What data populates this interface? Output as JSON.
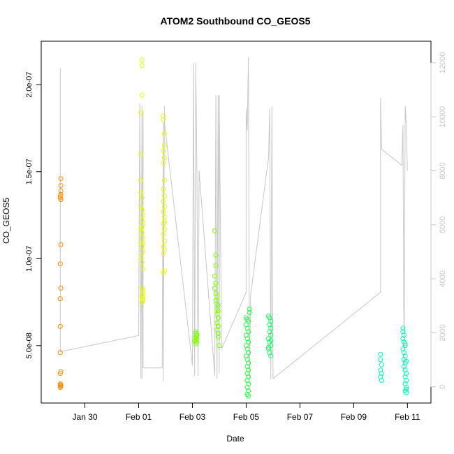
{
  "chart_data": {
    "type": "scatter",
    "title": "ATOM2 Southbound CO_GEOS5",
    "xlabel": "Date",
    "ylabel": "CO_GEOS5",
    "x_ticks": [
      "Jan 30",
      "Feb 01",
      "Feb 03",
      "Feb 05",
      "Feb 07",
      "Feb 09",
      "Feb 11"
    ],
    "y_ticks": [
      "5.0e-08",
      "1.0e-07",
      "1.5e-07",
      "2.0e-07"
    ],
    "y_tick_values": [
      5e-08,
      1e-07,
      1.5e-07,
      2e-07
    ],
    "y2_ticks": [
      "0",
      "2000",
      "4000",
      "6000",
      "8000",
      "10000",
      "12000"
    ],
    "y2_tick_values": [
      0,
      2000,
      4000,
      6000,
      8000,
      10000,
      12000
    ],
    "xlim": [
      "2017-01-28 09:00",
      "2017-02-11 21:00"
    ],
    "ylim": [
      1.7e-08,
      2.25e-07
    ],
    "y2lim": [
      -600,
      12800
    ],
    "grid": false,
    "colors": {
      "altitude_line": "#c8c8c8",
      "axis": "#000000",
      "y2_axis": "#c8c8c8",
      "flight_colors": [
        "#ff8c00",
        "#ffff00",
        "#e6ff00",
        "#80ff00",
        "#33ff33",
        "#00ff55",
        "#11ff77",
        "#00ffcc"
      ]
    },
    "series": [
      {
        "marker": "circle-open",
        "color": "#ff8c00",
        "points": [
          [
            "2017-01-29 02:00",
            1.36e-07
          ],
          [
            "2017-01-29 02:00",
            1.35e-07
          ],
          [
            "2017-01-29 02:30",
            1.37e-07
          ],
          [
            "2017-01-29 02:30",
            1.42e-07
          ],
          [
            "2017-01-29 02:30",
            1.46e-07
          ],
          [
            "2017-01-29 02:30",
            1.39e-07
          ],
          [
            "2017-01-29 02:30",
            1.34e-07
          ],
          [
            "2017-01-29 02:30",
            1.08e-07
          ],
          [
            "2017-01-29 02:00",
            9.7e-08
          ],
          [
            "2017-01-29 02:30",
            8.3e-08
          ],
          [
            "2017-01-29 02:00",
            7.7e-08
          ],
          [
            "2017-01-29 02:00",
            6.1e-08
          ],
          [
            "2017-01-29 02:00",
            4.6e-08
          ],
          [
            "2017-01-29 02:30",
            3.5e-08
          ],
          [
            "2017-01-29 02:00",
            3.4e-08
          ],
          [
            "2017-01-29 02:00",
            2.8e-08
          ],
          [
            "2017-01-29 02:30",
            2.75e-08
          ],
          [
            "2017-01-29 02:00",
            2.7e-08
          ],
          [
            "2017-01-29 02:30",
            2.65e-08
          ],
          [
            "2017-01-29 02:00",
            2.6e-08
          ]
        ]
      },
      {
        "marker": "circle-open",
        "color": "#e6ff00",
        "points": [
          [
            "2017-02-01 03:00",
            2.14e-07
          ],
          [
            "2017-02-01 03:00",
            2.11e-07
          ],
          [
            "2017-02-01 03:00",
            1.94e-07
          ],
          [
            "2017-02-01 02:00",
            1.84e-07
          ],
          [
            "2017-02-01 02:00",
            1.6e-07
          ],
          [
            "2017-02-01 02:00",
            1.45e-07
          ],
          [
            "2017-02-01 02:00",
            1.38e-07
          ],
          [
            "2017-02-01 03:00",
            1.35e-07
          ],
          [
            "2017-02-01 02:00",
            1.3e-07
          ],
          [
            "2017-02-01 04:00",
            1.25e-07
          ],
          [
            "2017-02-01 03:00",
            1.22e-07
          ],
          [
            "2017-02-01 04:00",
            1.2e-07
          ],
          [
            "2017-02-01 02:00",
            1.17e-07
          ],
          [
            "2017-02-01 03:00",
            1.15e-07
          ],
          [
            "2017-02-01 04:00",
            1.12e-07
          ],
          [
            "2017-02-01 02:00",
            1.1e-07
          ],
          [
            "2017-02-01 03:00",
            1.07e-07
          ],
          [
            "2017-02-01 04:00",
            1.04e-07
          ],
          [
            "2017-02-01 02:00",
            1.01e-07
          ],
          [
            "2017-02-01 03:00",
            9.8e-08
          ],
          [
            "2017-02-01 04:00",
            9.4e-08
          ],
          [
            "2017-02-01 03:00",
            8.3e-08
          ],
          [
            "2017-02-01 04:00",
            8e-08
          ],
          [
            "2017-02-01 03:00",
            7.8e-08
          ],
          [
            "2017-02-01 04:00",
            7.6e-08
          ],
          [
            "2017-02-01 03:00",
            7.5e-08
          ],
          [
            "2017-02-01 04:00",
            7.7e-08
          ],
          [
            "2017-02-01 03:00",
            7.9e-08
          ],
          [
            "2017-02-01 04:00",
            8.2e-08
          ],
          [
            "2017-02-01 03:00",
            1.18e-07
          ],
          [
            "2017-02-01 04:00",
            1.09e-07
          ],
          [
            "2017-02-01 03:00",
            1.28e-07
          ],
          [
            "2017-02-01 22:00",
            1.82e-07
          ],
          [
            "2017-02-01 22:00",
            1.8e-07
          ],
          [
            "2017-02-01 23:00",
            1.72e-07
          ],
          [
            "2017-02-01 23:00",
            1.65e-07
          ],
          [
            "2017-02-01 22:00",
            1.62e-07
          ],
          [
            "2017-02-01 23:00",
            1.58e-07
          ],
          [
            "2017-02-01 22:00",
            1.55e-07
          ],
          [
            "2017-02-01 23:00",
            1.45e-07
          ],
          [
            "2017-02-01 22:00",
            1.4e-07
          ],
          [
            "2017-02-01 23:00",
            1.36e-07
          ],
          [
            "2017-02-01 22:00",
            1.33e-07
          ],
          [
            "2017-02-01 23:00",
            1.3e-07
          ],
          [
            "2017-02-01 22:00",
            1.27e-07
          ],
          [
            "2017-02-01 23:00",
            1.24e-07
          ],
          [
            "2017-02-01 22:00",
            1.2e-07
          ],
          [
            "2017-02-01 23:00",
            1.17e-07
          ],
          [
            "2017-02-01 22:00",
            1.14e-07
          ],
          [
            "2017-02-01 23:00",
            1.1e-07
          ],
          [
            "2017-02-01 22:00",
            1.07e-07
          ],
          [
            "2017-02-01 23:00",
            1.05e-07
          ],
          [
            "2017-02-01 22:00",
            1.03e-07
          ],
          [
            "2017-02-01 23:00",
            9.3e-08
          ],
          [
            "2017-02-01 22:00",
            9.2e-08
          ],
          [
            "2017-02-01 23:00",
            1.21e-07
          ]
        ]
      },
      {
        "marker": "circle-open",
        "color": "#80ff00",
        "points": [
          [
            "2017-02-03 03:00",
            5.8e-08
          ],
          [
            "2017-02-03 03:00",
            5.7e-08
          ],
          [
            "2017-02-03 04:00",
            5.6e-08
          ],
          [
            "2017-02-03 03:00",
            5.5e-08
          ],
          [
            "2017-02-03 04:00",
            5.4e-08
          ],
          [
            "2017-02-03 03:00",
            5.3e-08
          ],
          [
            "2017-02-03 04:00",
            5.2e-08
          ],
          [
            "2017-02-03 03:00",
            5.1e-08
          ],
          [
            "2017-02-03 02:00",
            5.45e-08
          ],
          [
            "2017-02-03 02:00",
            5.25e-08
          ],
          [
            "2017-02-03 04:00",
            5.65e-08
          ],
          [
            "2017-02-03 20:00",
            1.16e-07
          ],
          [
            "2017-02-03 21:00",
            1.02e-07
          ],
          [
            "2017-02-03 21:00",
            9.6e-08
          ],
          [
            "2017-02-03 20:00",
            9e-08
          ],
          [
            "2017-02-03 21:00",
            8.6e-08
          ],
          [
            "2017-02-03 20:00",
            8.3e-08
          ],
          [
            "2017-02-03 21:00",
            8e-08
          ],
          [
            "2017-02-03 22:00",
            7.8e-08
          ],
          [
            "2017-02-03 21:00",
            7.6e-08
          ],
          [
            "2017-02-03 22:00",
            7.4e-08
          ],
          [
            "2017-02-03 23:00",
            7.3e-08
          ],
          [
            "2017-02-03 22:00",
            7.1e-08
          ],
          [
            "2017-02-03 23:00",
            7e-08
          ],
          [
            "2017-02-03 22:00",
            6.8e-08
          ],
          [
            "2017-02-03 23:00",
            6.6e-08
          ],
          [
            "2017-02-03 22:00",
            6.3e-08
          ],
          [
            "2017-02-03 23:00",
            6.1e-08
          ],
          [
            "2017-02-03 22:00",
            5.9e-08
          ],
          [
            "2017-02-03 23:00",
            5.7e-08
          ],
          [
            "2017-02-03 23:00",
            5.5e-08
          ],
          [
            "2017-02-04 00:00",
            5e-08
          ]
        ]
      },
      {
        "marker": "circle-open",
        "color": "#22ff44",
        "points": [
          [
            "2017-02-05 00:00",
            6.6e-08
          ],
          [
            "2017-02-05 01:00",
            6.5e-08
          ],
          [
            "2017-02-05 02:00",
            6.4e-08
          ],
          [
            "2017-02-05 03:00",
            6.9e-08
          ],
          [
            "2017-02-05 03:00",
            7.1e-08
          ],
          [
            "2017-02-05 00:00",
            6.2e-08
          ],
          [
            "2017-02-05 01:00",
            6e-08
          ],
          [
            "2017-02-05 02:00",
            5.8e-08
          ],
          [
            "2017-02-05 00:00",
            5.6e-08
          ],
          [
            "2017-02-05 01:00",
            5.4e-08
          ],
          [
            "2017-02-05 02:00",
            5.2e-08
          ],
          [
            "2017-02-05 00:00",
            5e-08
          ],
          [
            "2017-02-05 01:00",
            4.8e-08
          ],
          [
            "2017-02-05 02:00",
            4.6e-08
          ],
          [
            "2017-02-05 00:00",
            4.4e-08
          ],
          [
            "2017-02-05 01:00",
            4.2e-08
          ],
          [
            "2017-02-05 02:00",
            4e-08
          ],
          [
            "2017-02-05 01:00",
            3.8e-08
          ],
          [
            "2017-02-05 02:00",
            3.6e-08
          ],
          [
            "2017-02-05 01:00",
            3.4e-08
          ],
          [
            "2017-02-05 02:00",
            3.2e-08
          ],
          [
            "2017-02-05 01:00",
            3e-08
          ],
          [
            "2017-02-05 02:00",
            2.8e-08
          ],
          [
            "2017-02-05 01:00",
            2.6e-08
          ],
          [
            "2017-02-05 02:00",
            2.4e-08
          ],
          [
            "2017-02-05 01:00",
            2.2e-08
          ],
          [
            "2017-02-05 02:00",
            2.1e-08
          ]
        ]
      },
      {
        "marker": "circle-open",
        "color": "#11ff66",
        "points": [
          [
            "2017-02-05 20:00",
            6.7e-08
          ],
          [
            "2017-02-05 21:00",
            6.6e-08
          ],
          [
            "2017-02-05 22:00",
            6.4e-08
          ],
          [
            "2017-02-05 21:00",
            6.2e-08
          ],
          [
            "2017-02-05 22:00",
            6e-08
          ],
          [
            "2017-02-05 21:00",
            5.8e-08
          ],
          [
            "2017-02-05 22:00",
            5.6e-08
          ],
          [
            "2017-02-05 20:00",
            5.4e-08
          ],
          [
            "2017-02-05 21:00",
            5.2e-08
          ],
          [
            "2017-02-05 22:00",
            5e-08
          ],
          [
            "2017-02-05 20:00",
            4.8e-08
          ],
          [
            "2017-02-05 21:00",
            4.6e-08
          ],
          [
            "2017-02-05 22:00",
            4.4e-08
          ],
          [
            "2017-02-05 20:00",
            4.9e-08
          ],
          [
            "2017-02-05 22:00",
            5.3e-08
          ]
        ]
      },
      {
        "marker": "circle-open",
        "color": "#00ffbb",
        "points": [
          [
            "2017-02-10 00:00",
            4.5e-08
          ],
          [
            "2017-02-10 00:00",
            4.2e-08
          ],
          [
            "2017-02-10 01:00",
            3.9e-08
          ],
          [
            "2017-02-10 00:00",
            3.6e-08
          ],
          [
            "2017-02-10 01:00",
            3.4e-08
          ],
          [
            "2017-02-10 00:00",
            3.2e-08
          ],
          [
            "2017-02-10 01:00",
            3e-08
          ],
          [
            "2017-02-10 20:00",
            6e-08
          ],
          [
            "2017-02-10 20:00",
            5.8e-08
          ],
          [
            "2017-02-10 21:00",
            5.6e-08
          ],
          [
            "2017-02-10 20:00",
            5.4e-08
          ],
          [
            "2017-02-10 21:00",
            5.2e-08
          ],
          [
            "2017-02-10 22:00",
            5e-08
          ],
          [
            "2017-02-10 20:00",
            4.8e-08
          ],
          [
            "2017-02-10 21:00",
            4.6e-08
          ],
          [
            "2017-02-10 22:00",
            4.4e-08
          ],
          [
            "2017-02-10 21:00",
            4.2e-08
          ],
          [
            "2017-02-10 22:00",
            4e-08
          ],
          [
            "2017-02-10 21:00",
            3.8e-08
          ],
          [
            "2017-02-10 22:00",
            3.6e-08
          ],
          [
            "2017-02-10 23:00",
            3.4e-08
          ],
          [
            "2017-02-10 22:00",
            3.2e-08
          ],
          [
            "2017-02-10 23:00",
            3e-08
          ],
          [
            "2017-02-10 22:00",
            2.8e-08
          ],
          [
            "2017-02-10 23:00",
            2.6e-08
          ],
          [
            "2017-02-10 22:00",
            2.4e-08
          ],
          [
            "2017-02-10 23:00",
            2.3e-08
          ],
          [
            "2017-02-10 23:00",
            2.5e-08
          ],
          [
            "2017-02-10 23:00",
            4.1e-08
          ],
          [
            "2017-02-10 22:00",
            5.1e-08
          ]
        ]
      }
    ],
    "altitude_series": {
      "axis": "right",
      "points": [
        [
          "2017-01-29 02:00",
          1400
        ],
        [
          "2017-01-29 02:00",
          8000
        ],
        [
          "2017-01-29 02:00",
          11800
        ],
        [
          "2017-01-29 02:00",
          1300
        ],
        [
          "2017-02-01 00:00",
          1900
        ],
        [
          "2017-02-01 01:00",
          10500
        ],
        [
          "2017-02-01 02:00",
          300
        ],
        [
          "2017-02-01 03:00",
          10400
        ],
        [
          "2017-02-01 03:00",
          300
        ],
        [
          "2017-02-01 04:00",
          10200
        ],
        [
          "2017-02-01 04:00",
          9800
        ],
        [
          "2017-02-01 04:00",
          700
        ],
        [
          "2017-02-01 21:00",
          700
        ],
        [
          "2017-02-01 22:00",
          9800
        ],
        [
          "2017-02-01 22:00",
          200
        ],
        [
          "2017-02-01 23:00",
          10400
        ],
        [
          "2017-02-01 23:00",
          9800
        ],
        [
          "2017-02-03 00:00",
          800
        ],
        [
          "2017-02-03 01:00",
          12000
        ],
        [
          "2017-02-03 02:00",
          400
        ],
        [
          "2017-02-03 03:00",
          12000
        ],
        [
          "2017-02-03 04:00",
          8100
        ],
        [
          "2017-02-03 05:00",
          400
        ],
        [
          "2017-02-03 06:00",
          8000
        ],
        [
          "2017-02-03 20:00",
          400
        ],
        [
          "2017-02-03 21:00",
          10800
        ],
        [
          "2017-02-03 22:00",
          300
        ],
        [
          "2017-02-03 23:00",
          10800
        ],
        [
          "2017-02-04 00:00",
          500
        ],
        [
          "2017-02-04 00:00",
          10800
        ],
        [
          "2017-02-04 02:00",
          1400
        ],
        [
          "2017-02-05 00:00",
          3500
        ],
        [
          "2017-02-05 00:00",
          10300
        ],
        [
          "2017-02-05 01:00",
          9500
        ],
        [
          "2017-02-05 02:00",
          12200
        ],
        [
          "2017-02-05 03:00",
          300
        ],
        [
          "2017-02-05 04:00",
          3400
        ],
        [
          "2017-02-05 20:00",
          8500
        ],
        [
          "2017-02-05 21:00",
          10300
        ],
        [
          "2017-02-05 22:00",
          300
        ],
        [
          "2017-02-05 23:00",
          10400
        ],
        [
          "2017-02-06 00:00",
          300
        ],
        [
          "2017-02-10 00:00",
          3500
        ],
        [
          "2017-02-10 00:00",
          10700
        ],
        [
          "2017-02-10 01:00",
          8800
        ],
        [
          "2017-02-10 19:00",
          8200
        ],
        [
          "2017-02-10 20:00",
          9700
        ],
        [
          "2017-02-10 21:00",
          400
        ],
        [
          "2017-02-10 22:00",
          10400
        ],
        [
          "2017-02-10 23:00",
          9700
        ],
        [
          "2017-02-11 00:00",
          8000
        ]
      ]
    }
  }
}
